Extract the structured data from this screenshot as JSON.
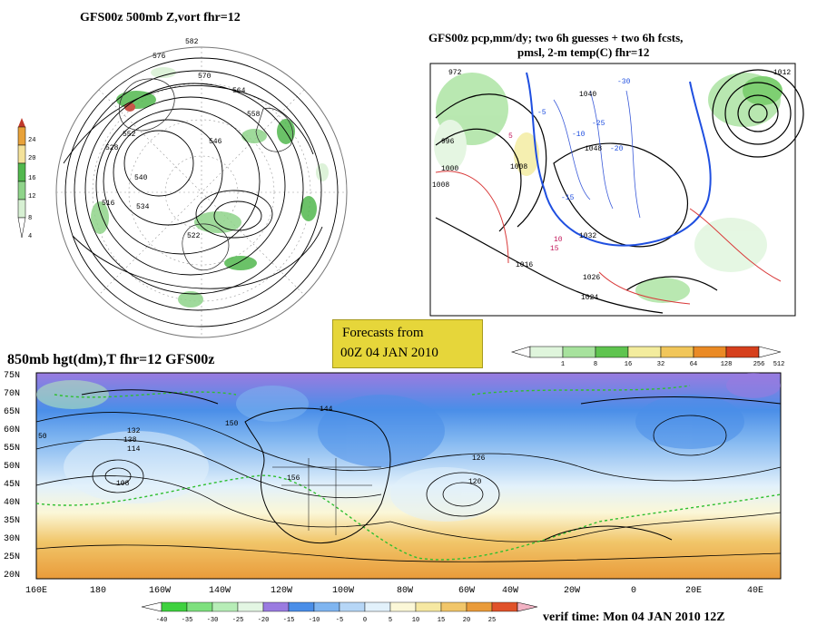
{
  "panels": {
    "top_left": {
      "title": "GFS00z   500mb  Z,vort     fhr=12",
      "colorbar_levels": [
        "24",
        "20",
        "16",
        "12",
        "8",
        "4"
      ],
      "colorbar_colors": [
        "#c0392b",
        "#e8a23a",
        "#f4e29a",
        "#52b84e",
        "#8fd48a",
        "#d7f0d3"
      ],
      "height_labels": [
        "582",
        "576",
        "570",
        "564",
        "558",
        "552",
        "546",
        "540",
        "534",
        "528",
        "522",
        "516"
      ]
    },
    "top_right": {
      "title_line1": "GFS00z pcp,mm/dy; two 6h guesses + two 6h fcsts,",
      "title_line2": "pmsl, 2-m temp(C)  fhr=12",
      "colorbar_levels": [
        "1",
        "8",
        "16",
        "32",
        "64",
        "128",
        "256",
        "512"
      ],
      "colorbar_colors": [
        "#dff5dc",
        "#a7e29d",
        "#5fc44f",
        "#f3ec9d",
        "#f1c65a",
        "#ea8a25",
        "#d6401d",
        "#ffffff"
      ],
      "pressure_labels": [
        "972",
        "996",
        "1000",
        "1008",
        "1016",
        "1024",
        "1026",
        "1032",
        "1040",
        "1048",
        "1012",
        "1008"
      ],
      "temp_labels": [
        "-5",
        "-10",
        "-15",
        "-20",
        "-25",
        "-30",
        "10",
        "15",
        "5"
      ]
    },
    "banner": {
      "line1": "Forecasts from",
      "line2": "00Z 04 JAN 2010"
    },
    "bottom": {
      "title": "850mb hgt(dm),T   fhr=12 GFS00z",
      "lat_labels": [
        "75N",
        "70N",
        "65N",
        "60N",
        "55N",
        "50N",
        "45N",
        "40N",
        "35N",
        "30N",
        "25N",
        "20N"
      ],
      "lon_labels": [
        "160E",
        "180",
        "160W",
        "140W",
        "120W",
        "100W",
        "80W",
        "60W",
        "40W",
        "20W",
        "0",
        "20E",
        "40E"
      ],
      "height_labels": [
        "144",
        "150",
        "132",
        "138",
        "126",
        "114",
        "108",
        "120",
        "156",
        "50"
      ],
      "colorbar_levels": [
        "-40",
        "-35",
        "-30",
        "-25",
        "-20",
        "-15",
        "-10",
        "-5",
        "0",
        "5",
        "10",
        "15",
        "20",
        "25"
      ],
      "colorbar_colors": [
        "#3fd13f",
        "#7ee07e",
        "#b7edb7",
        "#e3f6e3",
        "#9a7be0",
        "#4a8ee8",
        "#7fb5f0",
        "#b6d6f6",
        "#e2f1fb",
        "#fbf7d7",
        "#f6e8a2",
        "#f1c66a",
        "#e99b3a",
        "#e0522a"
      ],
      "verif_time": "verif time: Mon 04 JAN 2010 12Z"
    }
  }
}
